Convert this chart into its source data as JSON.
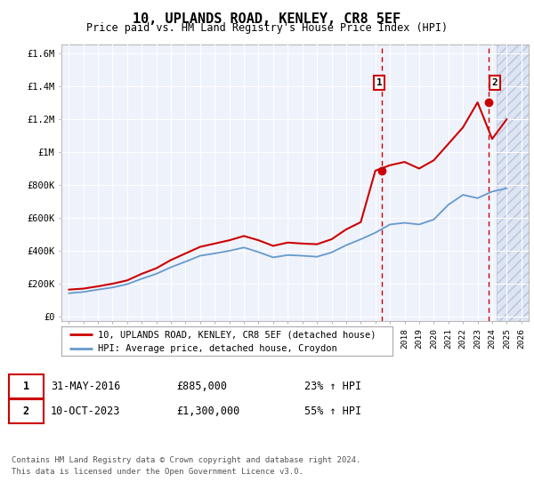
{
  "title": "10, UPLANDS ROAD, KENLEY, CR8 5EF",
  "subtitle": "Price paid vs. HM Land Registry's House Price Index (HPI)",
  "ylabel_ticks": [
    "£0",
    "£200K",
    "£400K",
    "£600K",
    "£800K",
    "£1M",
    "£1.2M",
    "£1.4M",
    "£1.6M"
  ],
  "ylabel_values": [
    0,
    200000,
    400000,
    600000,
    800000,
    1000000,
    1200000,
    1400000,
    1600000
  ],
  "xlim": [
    1994.5,
    2026.5
  ],
  "ylim": [
    -30000,
    1650000
  ],
  "hpi_years": [
    1995,
    1996,
    1997,
    1998,
    1999,
    2000,
    2001,
    2002,
    2003,
    2004,
    2005,
    2006,
    2007,
    2008,
    2009,
    2010,
    2011,
    2012,
    2013,
    2014,
    2015,
    2016,
    2017,
    2018,
    2019,
    2020,
    2021,
    2022,
    2023,
    2024,
    2025
  ],
  "hpi_values": [
    140000,
    148000,
    162000,
    175000,
    195000,
    228000,
    258000,
    298000,
    332000,
    368000,
    382000,
    398000,
    418000,
    390000,
    358000,
    372000,
    368000,
    362000,
    388000,
    432000,
    468000,
    508000,
    558000,
    568000,
    558000,
    588000,
    678000,
    738000,
    718000,
    758000,
    778000
  ],
  "property_years": [
    1995,
    1996,
    1997,
    1998,
    1999,
    2000,
    2001,
    2002,
    2003,
    2004,
    2005,
    2006,
    2007,
    2008,
    2009,
    2010,
    2011,
    2012,
    2013,
    2014,
    2015,
    2016,
    2017,
    2018,
    2019,
    2020,
    2021,
    2022,
    2023,
    2024,
    2025
  ],
  "property_values": [
    162000,
    168000,
    182000,
    198000,
    218000,
    258000,
    292000,
    342000,
    382000,
    422000,
    442000,
    462000,
    488000,
    462000,
    428000,
    448000,
    442000,
    438000,
    468000,
    528000,
    572000,
    885000,
    918000,
    938000,
    898000,
    948000,
    1048000,
    1148000,
    1300000,
    1078000,
    1198000
  ],
  "sale1_year": 2016.42,
  "sale1_price": 885000,
  "sale1_label": "1",
  "sale1_date": "31-MAY-2016",
  "sale1_amount": "£885,000",
  "sale1_pct": "23% ↑ HPI",
  "sale2_year": 2023.78,
  "sale2_price": 1300000,
  "sale2_label": "2",
  "sale2_date": "10-OCT-2023",
  "sale2_amount": "£1,300,000",
  "sale2_pct": "55% ↑ HPI",
  "line_color_property": "#cc0000",
  "line_color_hpi": "#6699cc",
  "future_shade_start": 2024.3,
  "legend_property": "10, UPLANDS ROAD, KENLEY, CR8 5EF (detached house)",
  "legend_hpi": "HPI: Average price, detached house, Croydon",
  "footnote1": "Contains HM Land Registry data © Crown copyright and database right 2024.",
  "footnote2": "This data is licensed under the Open Government Licence v3.0.",
  "bg_color": "#eef2fb",
  "future_bg_color": "#dde4f4",
  "grid_color": "#ffffff",
  "border_color": "#bbbbbb"
}
